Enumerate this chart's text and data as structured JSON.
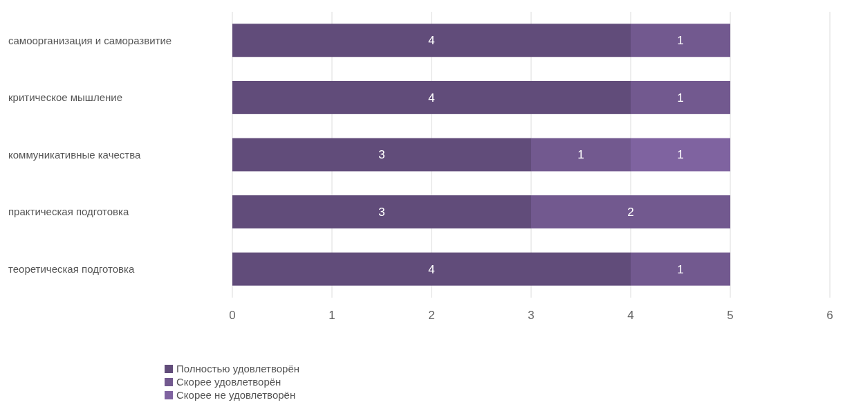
{
  "chart_data": {
    "type": "bar",
    "orientation": "horizontal",
    "stacked": true,
    "categories": [
      "самоорганизация и саморазвитие",
      "критическое мышление",
      "коммуникативные качества",
      "практическая подготовка",
      "теоретическая подготовка"
    ],
    "series": [
      {
        "name": "Полностью удовлетворён",
        "color": "#614c7a",
        "values": [
          4,
          4,
          3,
          3,
          4
        ]
      },
      {
        "name": "Скорее удовлетворён",
        "color": "#72598f",
        "values": [
          1,
          1,
          1,
          2,
          1
        ]
      },
      {
        "name": "Скорее не удовлетворён",
        "color": "#7f63a0",
        "values": [
          null,
          null,
          1,
          null,
          null
        ]
      }
    ],
    "xlim": [
      0,
      6
    ],
    "xticks": [
      0,
      1,
      2,
      3,
      4,
      5,
      6
    ],
    "grid": "x",
    "legend": "bottom left",
    "data_labels": true
  }
}
